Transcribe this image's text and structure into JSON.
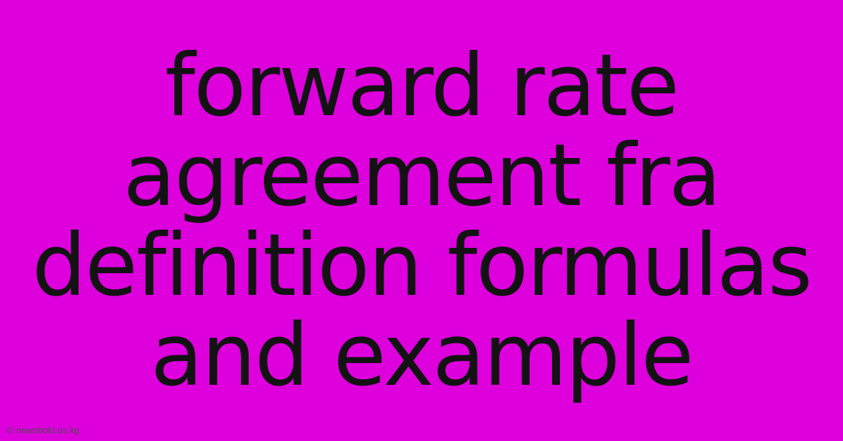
{
  "background_color": "#dd00dd",
  "main": {
    "text": "forward rate agreement fra definition formulas and example",
    "font_size": 122,
    "font_weight": 400,
    "color": "#121212"
  },
  "copyright": {
    "text": "© newsbold.us.kg",
    "font_size": 13,
    "color": "#4d4d4d"
  }
}
